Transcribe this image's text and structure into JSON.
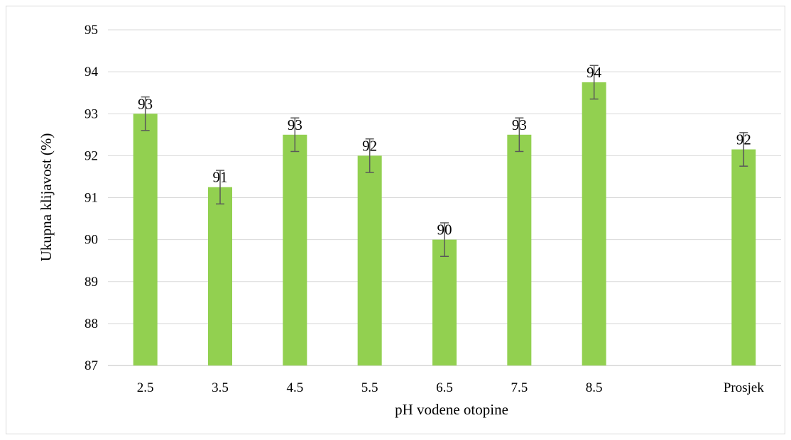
{
  "chart_data": {
    "type": "bar",
    "title": "",
    "xlabel": "pH vodene otopine",
    "ylabel": "Ukupna klijavost (%)",
    "ylim": [
      87,
      95
    ],
    "yticks": [
      "87",
      "88",
      "89",
      "90",
      "91",
      "92",
      "93",
      "94",
      "95"
    ],
    "grid": true,
    "categories": [
      "2.5",
      "3.5",
      "4.5",
      "5.5",
      "6.5",
      "7.5",
      "8.5",
      "",
      "Prosjek"
    ],
    "values": [
      93.0,
      91.25,
      92.5,
      92.0,
      90.0,
      92.5,
      93.75,
      null,
      92.15
    ],
    "error": [
      0.4,
      0.4,
      0.4,
      0.4,
      0.4,
      0.4,
      0.4,
      null,
      0.4
    ],
    "data_labels": [
      "93",
      "91",
      "93",
      "92",
      "90",
      "93",
      "94",
      "",
      "92"
    ],
    "bar_color": "#92d050",
    "error_color": "#595959",
    "grid_color": "#d9d9d9"
  }
}
